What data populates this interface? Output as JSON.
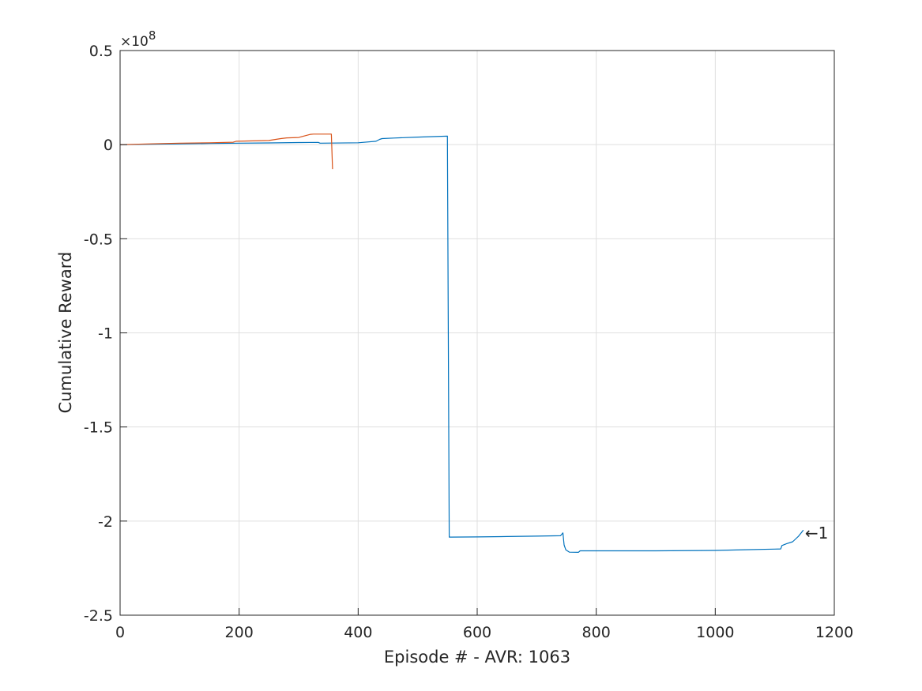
{
  "chart_data": {
    "type": "line",
    "xlabel": "Episode # - AVR: 1063",
    "ylabel": "Cumulative Reward",
    "xlim": [
      0,
      1200
    ],
    "ylim": [
      -2.5,
      0.5
    ],
    "y_exponent_label": "×10",
    "y_exponent": "8",
    "x_ticks": [
      0,
      200,
      400,
      600,
      800,
      1000,
      1200
    ],
    "y_ticks": [
      0.5,
      0,
      -0.5,
      -1,
      -1.5,
      -2,
      -2.5
    ],
    "x_tick_labels": [
      "0",
      "200",
      "400",
      "600",
      "800",
      "1000",
      "1200"
    ],
    "y_tick_labels": [
      "0.5",
      "0",
      "-0.5",
      "-1",
      "-1.5",
      "-2",
      "-2.5"
    ],
    "grid": true,
    "series": [
      {
        "color": "#0072BD",
        "x": [
          0,
          50,
          100,
          150,
          200,
          250,
          300,
          333,
          336,
          400,
          430,
          436,
          440,
          460,
          500,
          550,
          553,
          556,
          600,
          650,
          700,
          740,
          744,
          746,
          749,
          755,
          770,
          773,
          800,
          900,
          1000,
          1050,
          1100,
          1110,
          1112,
          1120,
          1130,
          1135,
          1140,
          1145,
          1148
        ],
        "y": [
          0,
          0.002,
          0.004,
          0.006,
          0.008,
          0.009,
          0.011,
          0.012,
          0.008,
          0.01,
          0.018,
          0.028,
          0.032,
          0.035,
          0.04,
          0.045,
          -2.085,
          -2.085,
          -2.084,
          -2.082,
          -2.08,
          -2.078,
          -2.063,
          -2.127,
          -2.153,
          -2.165,
          -2.166,
          -2.158,
          -2.158,
          -2.158,
          -2.156,
          -2.152,
          -2.149,
          -2.148,
          -2.13,
          -2.12,
          -2.11,
          -2.095,
          -2.08,
          -2.06,
          -2.048
        ]
      },
      {
        "color": "#D95319",
        "x": [
          0,
          50,
          100,
          150,
          190,
          195,
          250,
          270,
          280,
          300,
          320,
          325,
          355,
          357
        ],
        "y": [
          0,
          0.004,
          0.008,
          0.01,
          0.013,
          0.018,
          0.022,
          0.032,
          0.036,
          0.038,
          0.055,
          0.056,
          0.056,
          -0.13
        ]
      }
    ],
    "annotation": {
      "text": "←1",
      "x": 1148,
      "y": -2.063
    }
  }
}
